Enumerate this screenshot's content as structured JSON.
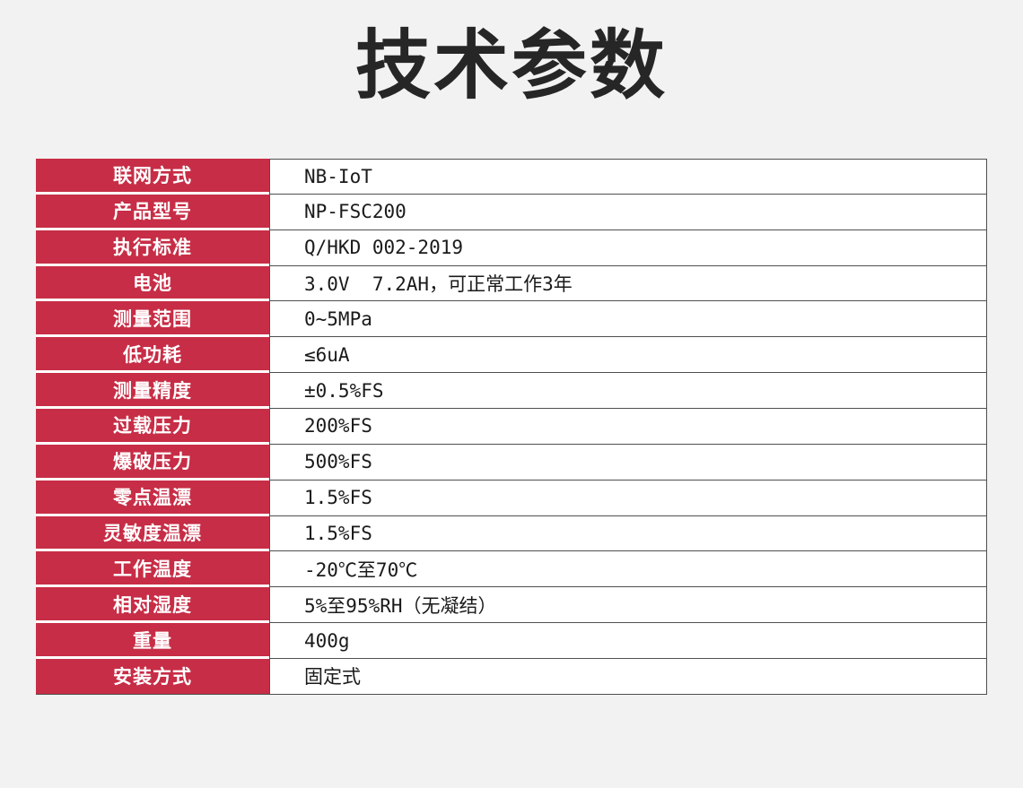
{
  "page": {
    "title": "技术参数",
    "background_color": "#F1F2F1"
  },
  "colors": {
    "accent_red": "#C72D46",
    "table_border": "#4F4F4F",
    "label_text": "#FFFFFF",
    "value_text": "#1A1A1A",
    "title_text": "#262626",
    "row_gap": "#FFFFFF"
  },
  "table": {
    "rows": [
      {
        "label": "联网方式",
        "value": "NB-IoT"
      },
      {
        "label": "产品型号",
        "value": "NP-FSC200"
      },
      {
        "label": "执行标准",
        "value": "Q/HKD 002-2019"
      },
      {
        "label": "电池",
        "value": "3.0V  7.2AH，可正常工作3年"
      },
      {
        "label": "测量范围",
        "value": "0~5MPa"
      },
      {
        "label": "低功耗",
        "value": "≤6uA"
      },
      {
        "label": "测量精度",
        "value": "±0.5%FS"
      },
      {
        "label": "过载压力",
        "value": "200%FS"
      },
      {
        "label": "爆破压力",
        "value": "500%FS"
      },
      {
        "label": "零点温漂",
        "value": "1.5%FS"
      },
      {
        "label": "灵敏度温漂",
        "value": "1.5%FS"
      },
      {
        "label": "工作温度",
        "value": "-20℃至70℃"
      },
      {
        "label": "相对湿度",
        "value": "5%至95%RH（无凝结）"
      },
      {
        "label": "重量",
        "value": "400g"
      },
      {
        "label": "安装方式",
        "value": "固定式"
      }
    ]
  }
}
